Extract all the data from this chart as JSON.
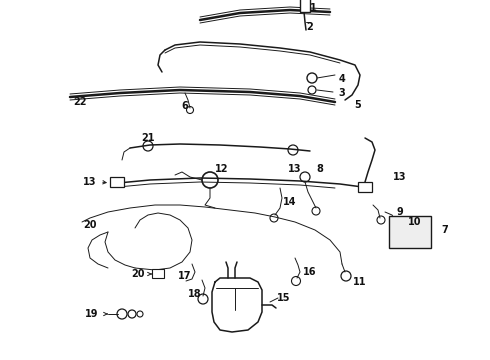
{
  "bg_color": "#ffffff",
  "fig_width": 4.9,
  "fig_height": 3.6,
  "dpi": 100,
  "line_color": "#1a1a1a",
  "label_fontsize": 7.0
}
